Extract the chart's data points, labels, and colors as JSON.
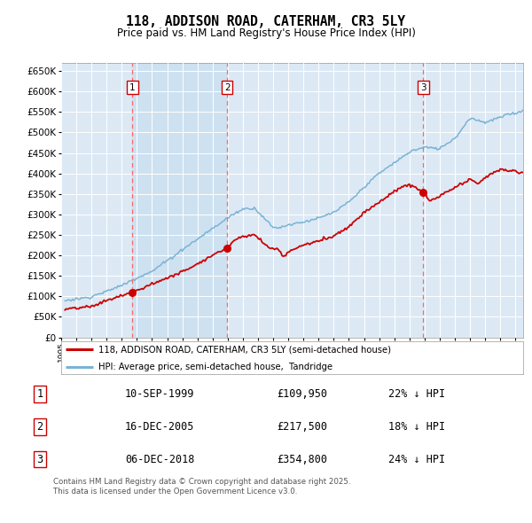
{
  "title": "118, ADDISON ROAD, CATERHAM, CR3 5LY",
  "subtitle": "Price paid vs. HM Land Registry's House Price Index (HPI)",
  "plot_bg_color": "#dce9f5",
  "hpi_color": "#7ab3d4",
  "price_color": "#cc0000",
  "vline_color": "#ff6666",
  "shade_color": "#c8dff0",
  "ylim": [
    0,
    670000
  ],
  "yticks": [
    0,
    50000,
    100000,
    150000,
    200000,
    250000,
    300000,
    350000,
    400000,
    450000,
    500000,
    550000,
    600000,
    650000
  ],
  "sales": [
    {
      "date_num": 1999.71,
      "price": 109950,
      "label": "1"
    },
    {
      "date_num": 2005.96,
      "price": 217500,
      "label": "2"
    },
    {
      "date_num": 2018.92,
      "price": 354800,
      "label": "3"
    }
  ],
  "vlines": [
    1999.71,
    2005.96,
    2018.92
  ],
  "legend_entries": [
    "118, ADDISON ROAD, CATERHAM, CR3 5LY (semi-detached house)",
    "HPI: Average price, semi-detached house,  Tandridge"
  ],
  "table_rows": [
    {
      "num": "1",
      "date": "10-SEP-1999",
      "price": "£109,950",
      "hpi": "22% ↓ HPI"
    },
    {
      "num": "2",
      "date": "16-DEC-2005",
      "price": "£217,500",
      "hpi": "18% ↓ HPI"
    },
    {
      "num": "3",
      "date": "06-DEC-2018",
      "price": "£354,800",
      "hpi": "24% ↓ HPI"
    }
  ],
  "footer": "Contains HM Land Registry data © Crown copyright and database right 2025.\nThis data is licensed under the Open Government Licence v3.0.",
  "xmin": 1995.25,
  "xmax": 2025.5
}
